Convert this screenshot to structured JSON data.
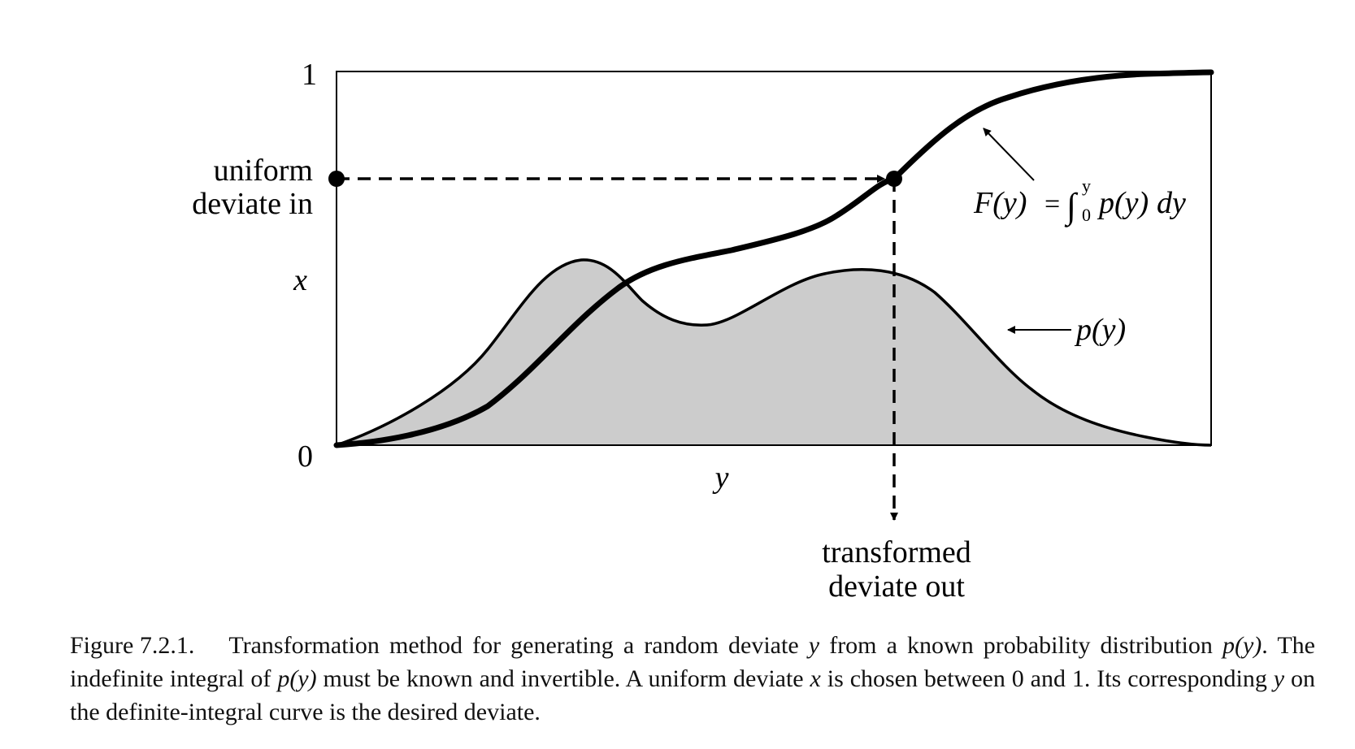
{
  "figure": {
    "axis": {
      "y_tick_top": "1",
      "y_tick_bottom": "0",
      "x_var": "y",
      "left_label_line1": "uniform",
      "left_label_line2": "deviate in",
      "left_label_var": "x",
      "bottom_label_line1": "transformed",
      "bottom_label_line2": "deviate out"
    },
    "curves": {
      "cdf_label_F": "F(y)",
      "cdf_label_eq": "=",
      "cdf_label_int": "∫",
      "cdf_label_upper": "y",
      "cdf_label_lower": "0",
      "cdf_label_py": "p(y)",
      "cdf_label_dy": "dy",
      "pdf_label": "p(y)"
    }
  },
  "caption": {
    "label": "Figure 7.2.1.",
    "seg1": "Transformation method for generating a random deviate ",
    "v1": "y",
    "seg2": " from a known probability distribution ",
    "v2": "p(y)",
    "seg3": ". The indefinite integral of ",
    "v3": "p(y)",
    "seg4": " must be known and invertible. A uniform deviate ",
    "v4": "x",
    "seg5": " is chosen between 0 and 1. Its corresponding ",
    "v5": "y",
    "seg6": " on the definite-integral curve is the desired deviate."
  }
}
